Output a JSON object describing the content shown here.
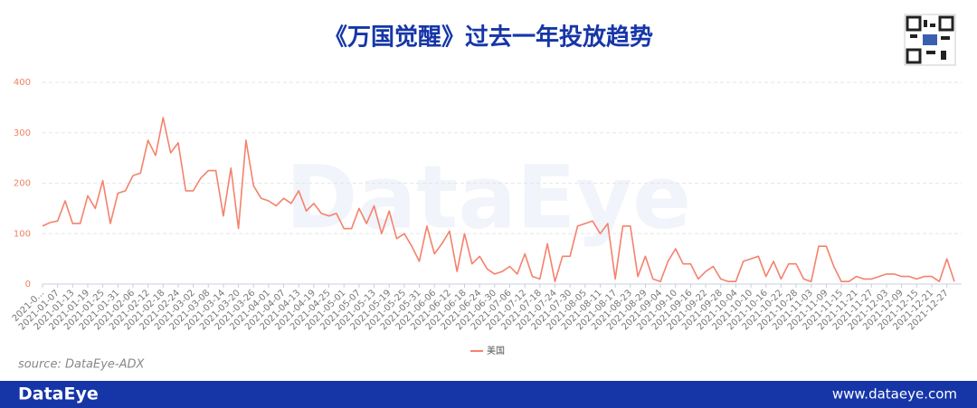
{
  "chart_data": {
    "type": "line",
    "title": "《万国觉醒》过去一年投放趋势",
    "source": "source:  DataEye-ADX",
    "watermark": "DataEye",
    "categories": [
      "2021-0...",
      null,
      "2021-01-07",
      null,
      "2021-01-13",
      null,
      "2021-01-19",
      null,
      "2021-01-25",
      null,
      "2021-01-31",
      null,
      "2021-02-06",
      null,
      "2021-02-12",
      null,
      "2021-02-18",
      null,
      "2021-02-24",
      null,
      "2021-03-02",
      null,
      "2021-03-08",
      null,
      "2021-03-14",
      null,
      "2021-03-20",
      null,
      "2021-03-26",
      null,
      "2021-04-01",
      null,
      "2021-04-07",
      null,
      "2021-04-13",
      null,
      "2021-04-19",
      null,
      "2021-04-25",
      null,
      "2021-05-01",
      null,
      "2021-05-07",
      null,
      "2021-05-13",
      null,
      "2021-05-19",
      null,
      "2021-05-25",
      null,
      "2021-05-31",
      null,
      "2021-06-06",
      null,
      "2021-06-12",
      null,
      "2021-06-18",
      null,
      "2021-06-24",
      null,
      "2021-06-30",
      null,
      "2021-07-06",
      null,
      "2021-07-12",
      null,
      "2021-07-18",
      null,
      "2021-07-24",
      null,
      "2021-07-30",
      null,
      "2021-08-05",
      null,
      "2021-08-11",
      null,
      "2021-08-17",
      null,
      "2021-08-23",
      null,
      "2021-08-29",
      null,
      "2021-09-04",
      null,
      "2021-09-10",
      null,
      "2021-09-16",
      null,
      "2021-09-22",
      null,
      "2021-09-28",
      null,
      "2021-10-04",
      null,
      "2021-10-10",
      null,
      "2021-10-16",
      null,
      "2021-10-22",
      null,
      "2021-10-28",
      null,
      "2021-11-03",
      null,
      "2021-11-09",
      null,
      "2021-11-15",
      null,
      "2021-11-21",
      null,
      "2021-11-27",
      null,
      "2021-12-03",
      null,
      "2021-12-09",
      null,
      "2021-12-15",
      null,
      "2021-12-21",
      null,
      "2021-12-27",
      null
    ],
    "series": [
      {
        "name": "美国",
        "color": "#f4826c",
        "values": [
          115,
          122,
          125,
          165,
          120,
          120,
          175,
          150,
          205,
          120,
          180,
          185,
          215,
          220,
          285,
          255,
          330,
          260,
          280,
          185,
          185,
          210,
          225,
          225,
          135,
          230,
          110,
          285,
          195,
          170,
          165,
          155,
          170,
          160,
          185,
          145,
          160,
          140,
          135,
          140,
          110,
          110,
          150,
          120,
          155,
          100,
          145,
          90,
          100,
          75,
          45,
          115,
          60,
          80,
          105,
          25,
          100,
          40,
          55,
          30,
          20,
          25,
          35,
          20,
          60,
          15,
          10,
          80,
          5,
          55,
          55,
          115,
          120,
          125,
          100,
          120,
          10,
          115,
          115,
          15,
          55,
          10,
          5,
          45,
          70,
          40,
          40,
          10,
          25,
          35,
          10,
          5,
          5,
          45,
          50,
          55,
          15,
          45,
          10,
          40,
          40,
          10,
          5,
          75,
          75,
          35,
          5,
          5,
          15,
          10,
          10,
          15,
          20,
          20,
          15,
          15,
          10,
          15,
          15,
          5,
          50,
          5
        ]
      }
    ],
    "ylim": [
      0,
      400
    ],
    "yticks": [
      0,
      100,
      200,
      300,
      400
    ],
    "grid": true,
    "legend": "bottom"
  },
  "footer": {
    "brand": "DataEye",
    "url": "www.dataeye.com"
  }
}
